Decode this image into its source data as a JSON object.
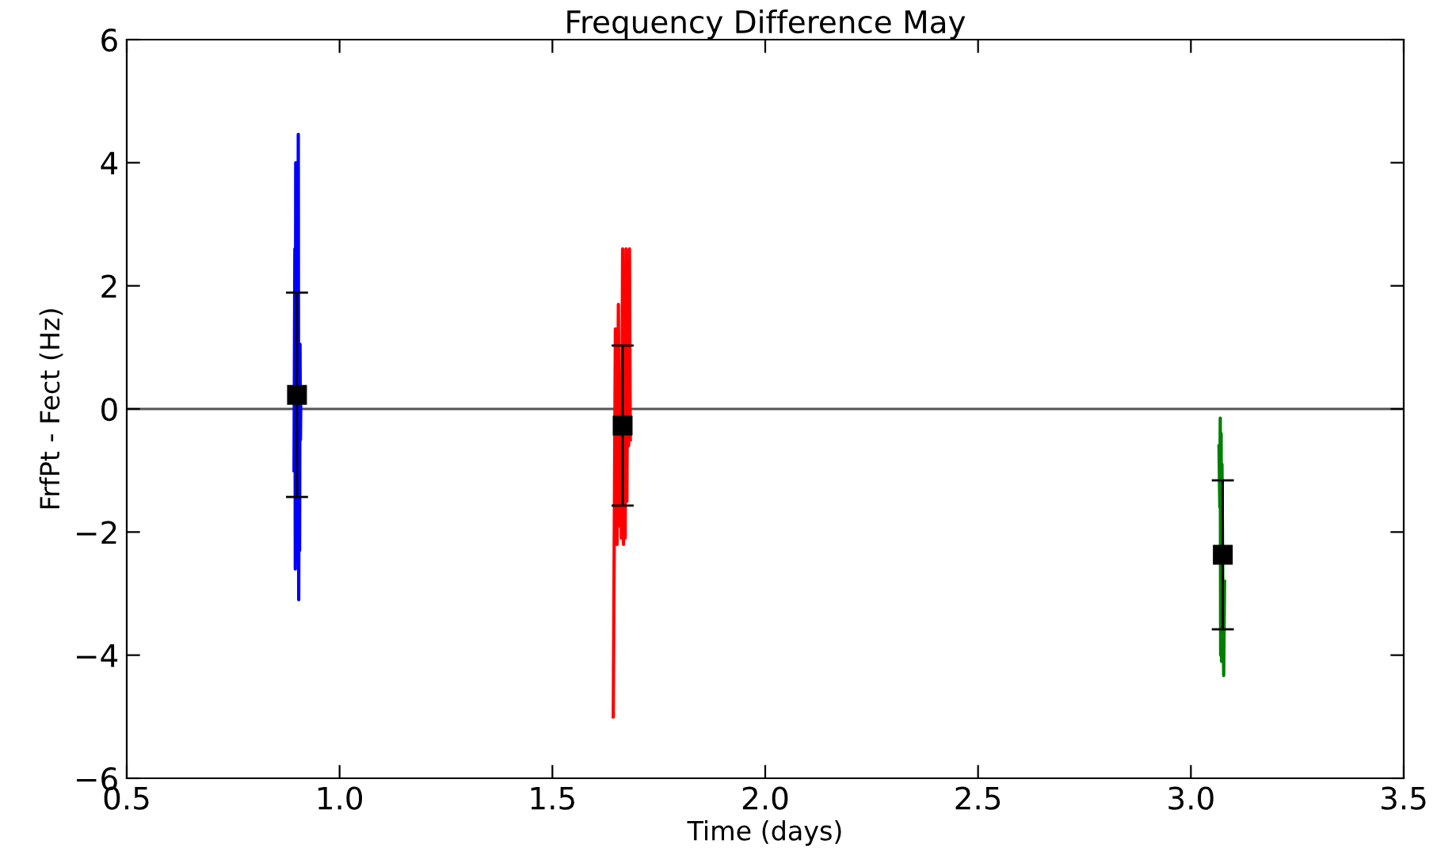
{
  "chart_data": {
    "type": "line",
    "title": "Frequency Difference May",
    "xlabel": "Time (days)",
    "ylabel": "FrfPt - Fect (Hz)",
    "xlim": [
      0.5,
      3.5
    ],
    "xticks": [
      0.5,
      {
        "value": 1,
        "label": "1.0"
      },
      1.5,
      {
        "value": 2,
        "label": "2.0"
      },
      2.5,
      {
        "value": 3,
        "label": "3.0"
      },
      3.5
    ],
    "ylim": [
      -6,
      6
    ],
    "yticks": [
      {
        "value": -6,
        "label": "−6"
      },
      {
        "value": -4,
        "label": "−4"
      },
      {
        "value": -2,
        "label": "−2"
      },
      0,
      2,
      4,
      6
    ],
    "grid": false,
    "legend": false,
    "ref_lines": [
      {
        "axis": "y",
        "value": 0,
        "color": "#555555"
      }
    ],
    "series": [
      {
        "color": "#0000ff",
        "x": [
          0.893,
          0.895,
          0.896,
          0.897,
          0.898,
          0.899,
          0.9,
          0.901,
          0.902,
          0.903,
          0.904,
          0.905,
          0.906,
          0.907,
          0.908,
          0.909
        ],
        "values": [
          -1.0,
          2.6,
          -2.6,
          4.0,
          -1.5,
          3.9,
          -2.3,
          1.0,
          -2.5,
          4.46,
          -3.1,
          0.5,
          -2.3,
          1.05,
          -0.5,
          0.3
        ]
      },
      {
        "color": "#ff0000",
        "x": [
          1.643,
          1.648,
          1.652,
          1.655,
          1.658,
          1.66,
          1.662,
          1.665,
          1.667,
          1.669,
          1.671,
          1.673,
          1.675,
          1.677,
          1.679,
          1.681,
          1.683
        ],
        "values": [
          -5.0,
          1.3,
          -2.2,
          1.7,
          -1.9,
          0.2,
          -2.1,
          2.6,
          -2.2,
          1.0,
          -2.1,
          2.6,
          -1.5,
          2.1,
          -0.6,
          2.6,
          -0.5
        ]
      },
      {
        "color": "#008000",
        "x": [
          3.066,
          3.068,
          3.069,
          3.07,
          3.071,
          3.072,
          3.073,
          3.075,
          3.077,
          3.079
        ],
        "values": [
          -0.6,
          -1.6,
          -0.15,
          -4.0,
          -0.4,
          -4.1,
          -0.9,
          -3.0,
          -4.33,
          -2.8
        ]
      },
      {
        "type": "scatter",
        "color": "#000000",
        "marker": "square",
        "x": [
          0.9,
          1.665,
          3.075
        ],
        "values": [
          0.23,
          -0.27,
          -2.37
        ],
        "errors": [
          1.66,
          1.3,
          1.21
        ]
      }
    ]
  }
}
